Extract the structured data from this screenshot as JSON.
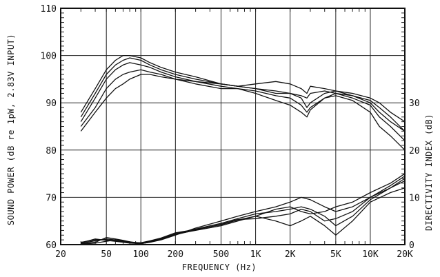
{
  "chart_data": {
    "type": "line",
    "xlabel": "FREQUENCY (Hz)",
    "ylabel": "SOUND POWER (dB re 1pW, 2.83V INPUT)",
    "y2label": "DIRECTIVITY INDEX (dB)",
    "xscale": "log",
    "xlim": [
      20,
      20000
    ],
    "ylim": [
      60,
      110
    ],
    "y2lim": [
      0,
      40
    ],
    "grid": true,
    "x_ticks": [
      {
        "value": 20,
        "label": "20"
      },
      {
        "value": 50,
        "label": "50"
      },
      {
        "value": 100,
        "label": "100"
      },
      {
        "value": 200,
        "label": "200"
      },
      {
        "value": 500,
        "label": "500"
      },
      {
        "value": 1000,
        "label": "1K"
      },
      {
        "value": 2000,
        "label": "2K"
      },
      {
        "value": 5000,
        "label": "5K"
      },
      {
        "value": 10000,
        "label": "10K"
      },
      {
        "value": 20000,
        "label": "20K"
      }
    ],
    "y_ticks": [
      {
        "value": 60,
        "label": "60"
      },
      {
        "value": 70,
        "label": "70"
      },
      {
        "value": 80,
        "label": "80"
      },
      {
        "value": 90,
        "label": "90"
      },
      {
        "value": 100,
        "label": "100"
      },
      {
        "value": 110,
        "label": "110"
      }
    ],
    "y2_ticks": [
      {
        "value": 0,
        "label": "0"
      },
      {
        "value": 10,
        "label": "10"
      },
      {
        "value": 20,
        "label": "20"
      },
      {
        "value": 30,
        "label": "30"
      }
    ],
    "series": [
      {
        "axis": "left",
        "x": [
          30,
          40,
          50,
          60,
          70,
          80,
          100,
          120,
          150,
          200,
          300,
          500,
          700,
          1000,
          1500,
          2000,
          2500,
          2800,
          3000,
          4000,
          5000,
          7000,
          10000,
          12000,
          15000,
          20000
        ],
        "values": [
          88,
          93,
          97,
          99,
          100,
          100,
          99.5,
          98.5,
          97.5,
          96.5,
          95.5,
          94,
          93.5,
          93,
          92.5,
          92,
          91,
          89,
          90,
          92,
          92.5,
          91.5,
          90,
          88,
          86,
          84
        ]
      },
      {
        "axis": "left",
        "x": [
          30,
          40,
          50,
          60,
          70,
          80,
          100,
          120,
          150,
          200,
          300,
          500,
          700,
          1000,
          1500,
          2000,
          2500,
          2800,
          3000,
          4000,
          5000,
          7000,
          10000,
          12000,
          15000,
          20000
        ],
        "values": [
          87,
          92,
          96,
          98,
          99,
          99.5,
          99,
          98,
          97,
          96,
          95,
          94,
          93.5,
          94,
          94.5,
          94,
          93,
          92,
          93.5,
          93,
          92.5,
          92,
          91,
          90,
          88,
          86
        ]
      },
      {
        "axis": "left",
        "x": [
          30,
          40,
          50,
          60,
          70,
          80,
          100,
          120,
          150,
          200,
          300,
          500,
          700,
          1000,
          1500,
          2000,
          2500,
          2800,
          3000,
          4000,
          5000,
          7000,
          10000,
          12000,
          15000,
          20000
        ],
        "values": [
          86,
          91,
          95,
          97,
          98,
          98.5,
          98,
          97.5,
          96.5,
          95.5,
          94.5,
          93.5,
          93,
          92,
          90.5,
          89.5,
          88,
          87,
          88.5,
          91,
          92,
          91.5,
          90.5,
          89,
          87,
          84
        ]
      },
      {
        "axis": "left",
        "x": [
          30,
          40,
          50,
          60,
          70,
          80,
          100,
          120,
          150,
          200,
          300,
          500,
          700,
          1000,
          1500,
          2000,
          2500,
          2800,
          3000,
          4000,
          5000,
          7000,
          10000,
          12000,
          15000,
          20000
        ],
        "values": [
          85,
          89,
          93,
          95,
          96,
          96.5,
          97,
          96.5,
          96,
          95,
          94,
          93,
          93,
          92.5,
          91.5,
          91,
          89.5,
          88,
          89,
          91,
          91.5,
          90.5,
          88,
          85,
          83,
          80
        ]
      },
      {
        "axis": "left",
        "x": [
          30,
          40,
          50,
          60,
          70,
          80,
          100,
          120,
          150,
          200,
          300,
          500,
          700,
          1000,
          1500,
          2000,
          2500,
          2800,
          3000,
          4000,
          5000,
          7000,
          10000,
          12000,
          15000,
          20000
        ],
        "values": [
          84,
          88,
          91,
          93,
          94,
          95,
          96,
          96,
          95.5,
          95,
          94.5,
          94,
          93.5,
          93,
          92,
          92,
          91.5,
          91,
          92,
          92.5,
          92,
          91,
          89.5,
          87,
          85,
          82
        ]
      },
      {
        "axis": "right",
        "x": [
          30,
          40,
          50,
          60,
          70,
          80,
          100,
          120,
          150,
          200,
          300,
          500,
          700,
          1000,
          1500,
          2000,
          2500,
          3000,
          4000,
          5000,
          7000,
          10000,
          15000,
          20000
        ],
        "values": [
          0.5,
          1,
          1,
          0.8,
          0.6,
          0.4,
          0.2,
          0.5,
          1,
          2,
          3.5,
          5,
          6,
          7,
          8,
          9,
          10,
          9.5,
          8,
          7,
          8,
          10,
          12,
          14
        ]
      },
      {
        "axis": "right",
        "x": [
          30,
          40,
          50,
          60,
          70,
          80,
          100,
          120,
          150,
          200,
          300,
          500,
          700,
          1000,
          1500,
          2000,
          2500,
          3000,
          4000,
          5000,
          7000,
          10000,
          15000,
          20000
        ],
        "values": [
          0.2,
          0.5,
          1.5,
          1.2,
          0.9,
          0.6,
          0.3,
          0.6,
          1.2,
          2.2,
          3,
          4,
          5,
          6,
          7.5,
          8,
          7,
          6.5,
          7,
          8,
          9,
          11,
          13,
          15
        ]
      },
      {
        "axis": "right",
        "x": [
          30,
          40,
          50,
          60,
          70,
          80,
          100,
          120,
          150,
          200,
          300,
          500,
          700,
          1000,
          1500,
          2000,
          2500,
          3000,
          4000,
          5000,
          7000,
          10000,
          15000,
          20000
        ],
        "values": [
          0.1,
          0.3,
          0.7,
          1,
          0.8,
          0.5,
          0.4,
          0.8,
          1.4,
          2.5,
          3.2,
          4.2,
          5.2,
          6,
          5,
          4,
          5,
          6,
          4,
          2,
          5,
          9,
          11,
          12
        ]
      },
      {
        "axis": "right",
        "x": [
          30,
          40,
          50,
          60,
          70,
          80,
          100,
          120,
          150,
          200,
          300,
          500,
          700,
          1000,
          1500,
          2000,
          2500,
          3000,
          4000,
          5000,
          7000,
          10000,
          15000,
          20000
        ],
        "values": [
          0.3,
          0.8,
          1.2,
          1,
          0.7,
          0.5,
          0.3,
          0.7,
          1.3,
          2.3,
          3.3,
          4.5,
          5.5,
          6.5,
          7,
          7.5,
          8,
          7.5,
          6,
          4,
          6,
          9.5,
          12,
          13.5
        ]
      },
      {
        "axis": "right",
        "x": [
          30,
          40,
          50,
          60,
          70,
          80,
          100,
          120,
          150,
          200,
          300,
          500,
          700,
          1000,
          1500,
          2000,
          2500,
          3000,
          4000,
          5000,
          7000,
          10000,
          15000,
          20000
        ],
        "values": [
          0.4,
          1.2,
          0.9,
          0.7,
          0.5,
          0.3,
          0.2,
          0.5,
          1.1,
          2.1,
          3.1,
          4.3,
          5.3,
          5.5,
          6,
          6.5,
          7.5,
          7,
          5,
          5.5,
          7,
          10,
          12.5,
          14.5
        ]
      }
    ]
  }
}
